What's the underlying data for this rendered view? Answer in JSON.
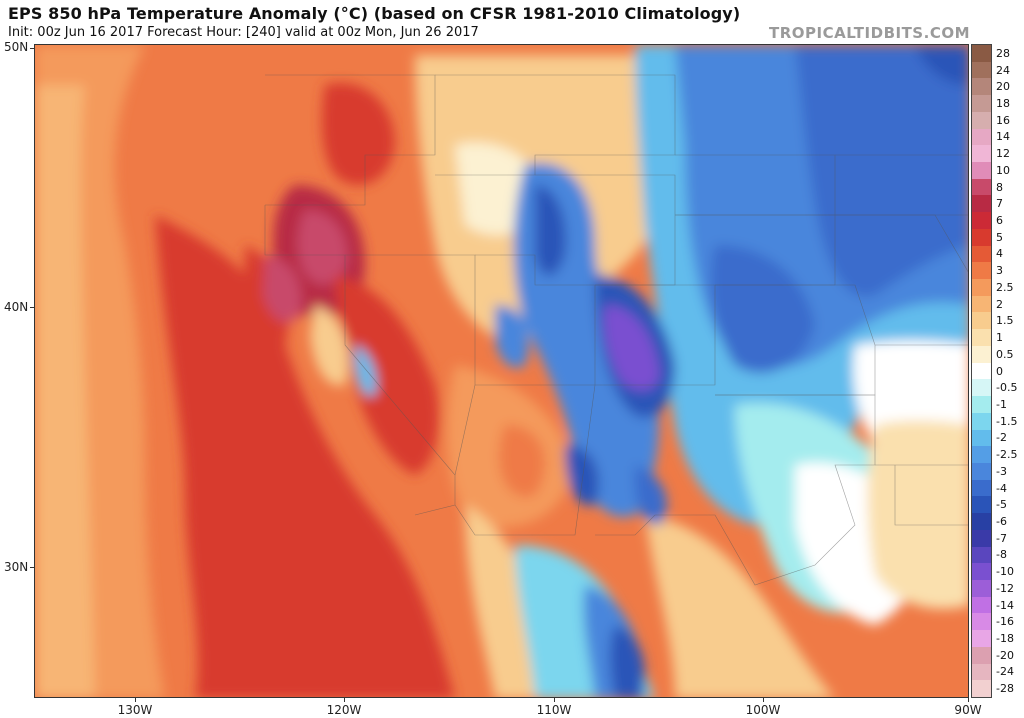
{
  "header": {
    "title": "EPS 850 hPa Temperature Anomaly (°C) (based on CFSR 1981-2010 Climatology)",
    "subtitle": "Init: 00z Jun 16 2017   Forecast Hour: [240]   valid at 00z Mon, Jun 26 2017",
    "watermark": "TROPICALTIDBITS.COM"
  },
  "map": {
    "lat_labels": [
      "50N",
      "40N",
      "30N"
    ],
    "lon_labels": [
      "130W",
      "120W",
      "110W",
      "100W",
      "90W"
    ]
  },
  "legend": {
    "levels": [
      {
        "label": "28",
        "color": "#8a5a44"
      },
      {
        "label": "24",
        "color": "#a0705c"
      },
      {
        "label": "20",
        "color": "#b4867a"
      },
      {
        "label": "18",
        "color": "#c59a94"
      },
      {
        "label": "16",
        "color": "#d6aeae"
      },
      {
        "label": "14",
        "color": "#e6a8c4"
      },
      {
        "label": "12",
        "color": "#f0b6d6"
      },
      {
        "label": "10",
        "color": "#e08cb8"
      },
      {
        "label": "8",
        "color": "#c84a6a"
      },
      {
        "label": "7",
        "color": "#b82a44"
      },
      {
        "label": "6",
        "color": "#cc2a36"
      },
      {
        "label": "5",
        "color": "#d83a2e"
      },
      {
        "label": "4",
        "color": "#e55a36"
      },
      {
        "label": "3",
        "color": "#ef7a46"
      },
      {
        "label": "2.5",
        "color": "#f49a5c"
      },
      {
        "label": "2",
        "color": "#f7b574"
      },
      {
        "label": "1.5",
        "color": "#f8cc8e"
      },
      {
        "label": "1",
        "color": "#fae0ae"
      },
      {
        "label": "0.5",
        "color": "#fcf1d2"
      },
      {
        "label": "0",
        "color": "#ffffff"
      },
      {
        "label": "-0.5",
        "color": "#d6f6f6"
      },
      {
        "label": "-1",
        "color": "#a4ecee"
      },
      {
        "label": "-1.5",
        "color": "#7cd6ee"
      },
      {
        "label": "-2",
        "color": "#62bcec"
      },
      {
        "label": "-2.5",
        "color": "#549ee6"
      },
      {
        "label": "-3",
        "color": "#4a86dc"
      },
      {
        "label": "-4",
        "color": "#3a6ccc"
      },
      {
        "label": "-5",
        "color": "#2a54b8"
      },
      {
        "label": "-6",
        "color": "#2840a4"
      },
      {
        "label": "-7",
        "color": "#3a3aa8"
      },
      {
        "label": "-8",
        "color": "#5a46be"
      },
      {
        "label": "-10",
        "color": "#7a50d0"
      },
      {
        "label": "-12",
        "color": "#9c5ed8"
      },
      {
        "label": "-14",
        "color": "#c070e4"
      },
      {
        "label": "-16",
        "color": "#d88ae6"
      },
      {
        "label": "-18",
        "color": "#e8a6e6"
      },
      {
        "label": "-20",
        "color": "#dca0b0"
      },
      {
        "label": "-24",
        "color": "#e6b6c0"
      },
      {
        "label": "-28",
        "color": "#f2d0d0"
      }
    ]
  },
  "colors": {
    "warm_deep": "#d83a2e",
    "warm_mid": "#ef7a46",
    "warm_light": "#f8cc8e",
    "neutral": "#ffffff",
    "cool_light": "#7cd6ee",
    "cool_mid": "#4a86dc",
    "cool_deep": "#2a54b8",
    "extreme_cold": "#7a50d0",
    "extreme_warm": "#c84a6a"
  }
}
